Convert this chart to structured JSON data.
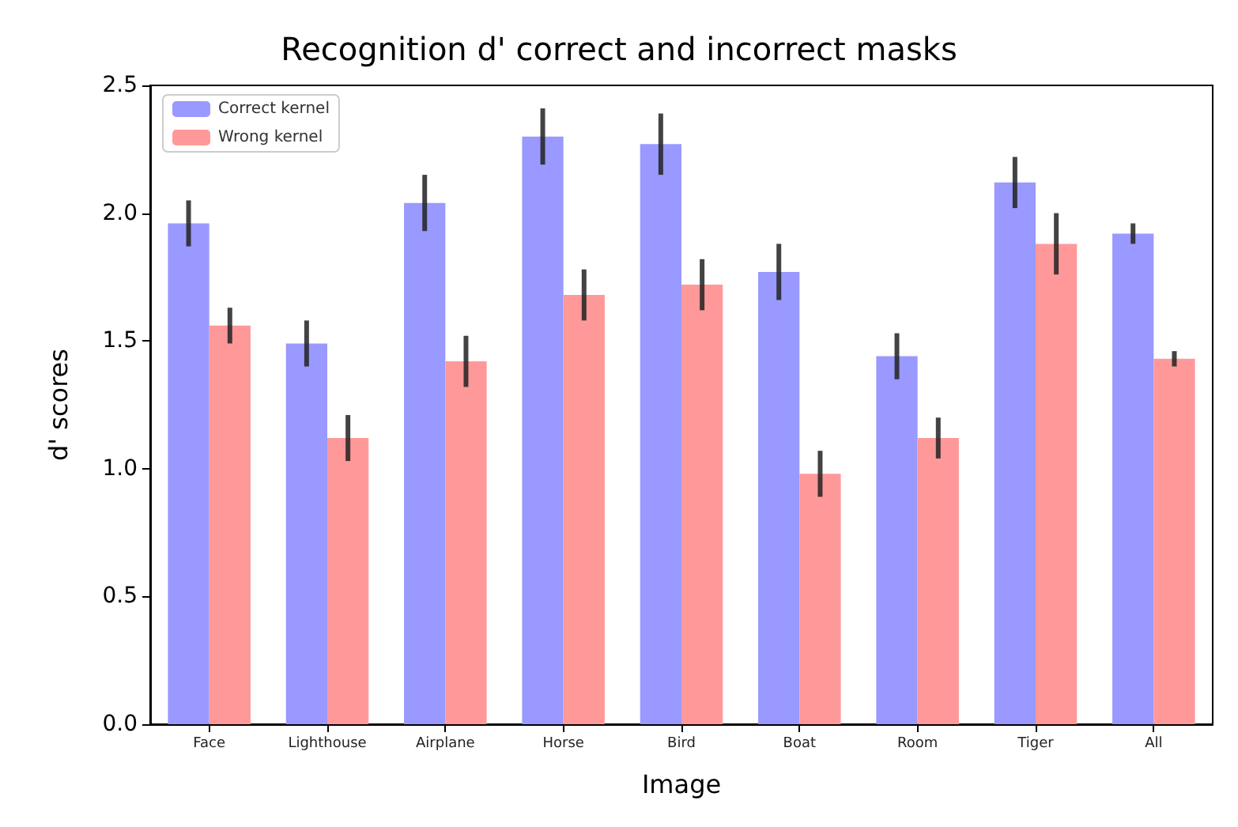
{
  "chart_data": {
    "type": "bar",
    "title": "Recognition d' correct and incorrect masks",
    "xlabel": "Image",
    "ylabel": "d' scores",
    "categories": [
      "Face",
      "Lighthouse",
      "Airplane",
      "Horse",
      "Bird",
      "Boat",
      "Room",
      "Tiger",
      "All"
    ],
    "series": [
      {
        "name": "Correct kernel",
        "color": "#9999ff",
        "values": [
          1.96,
          1.49,
          2.04,
          2.3,
          2.27,
          1.77,
          1.44,
          2.12,
          1.92
        ],
        "errors": [
          0.09,
          0.09,
          0.11,
          0.11,
          0.12,
          0.11,
          0.09,
          0.1,
          0.04
        ]
      },
      {
        "name": "Wrong kernel",
        "color": "#ff9999",
        "values": [
          1.56,
          1.12,
          1.42,
          1.68,
          1.72,
          0.98,
          1.12,
          1.88,
          1.43
        ],
        "errors": [
          0.07,
          0.09,
          0.1,
          0.1,
          0.1,
          0.09,
          0.08,
          0.12,
          0.03
        ]
      }
    ],
    "ylim": [
      0,
      2.5
    ],
    "yticks": [
      {
        "value": 0,
        "label": "0.0"
      },
      {
        "value": 0.5,
        "label": "0.5"
      },
      {
        "value": 1,
        "label": "1.0"
      },
      {
        "value": 1.5,
        "label": "1.5"
      },
      {
        "value": 2,
        "label": "2.0"
      },
      {
        "value": 2.5,
        "label": "2.5"
      }
    ],
    "legend": "top left",
    "grid": false
  }
}
